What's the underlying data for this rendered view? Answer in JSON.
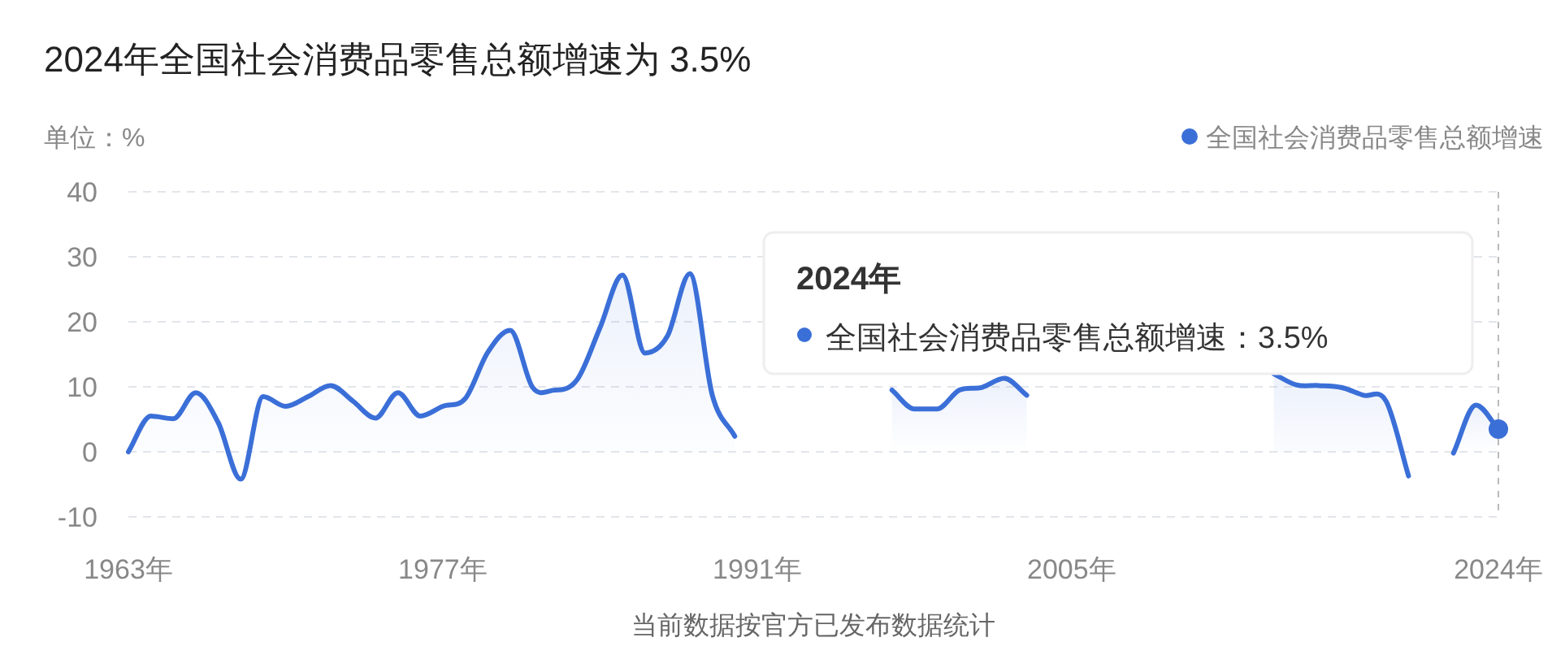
{
  "chart_data": {
    "type": "area",
    "title": "2024年全国社会消费品零售总额增速为 3.5%",
    "ylabel": "单位：%",
    "xlabel": "当前数据按官方已发布数据统计",
    "categories": [
      "1963年",
      null,
      null,
      null,
      null,
      null,
      null,
      null,
      null,
      null,
      null,
      null,
      null,
      null,
      "1977年",
      null,
      null,
      null,
      null,
      null,
      null,
      null,
      null,
      null,
      null,
      null,
      null,
      null,
      "1991年",
      null,
      null,
      null,
      null,
      null,
      null,
      null,
      null,
      null,
      null,
      null,
      null,
      null,
      "2005年",
      null,
      null,
      null,
      null,
      null,
      null,
      null,
      null,
      null,
      null,
      null,
      null,
      null,
      null,
      null,
      null,
      null,
      null,
      "2024年"
    ],
    "series": [
      {
        "name": "全国社会消费品零售总额增速",
        "color": "#3b6fd8",
        "values": [
          0,
          5.5,
          5.1,
          9.1,
          4.5,
          -4.2,
          8.5,
          7,
          8.5,
          10.2,
          7.8,
          5.2,
          9.1,
          5.5,
          7,
          8.2,
          15.3,
          18.7,
          9.9,
          9.5,
          11.2,
          19.1,
          27.2,
          15.2,
          17.8,
          27.4,
          8.7,
          2.4,
          null,
          null,
          null,
          null,
          null,
          null,
          9.5,
          6.6,
          6.6,
          9.5,
          9.9,
          11.3,
          8.7,
          null,
          null,
          null,
          null,
          null,
          null,
          null,
          null,
          null,
          null,
          12,
          10.3,
          10.2,
          9.9,
          8.7,
          7.8,
          -3.7,
          null,
          -0.2,
          7.2,
          3.5
        ]
      }
    ],
    "ylim": [
      -10,
      40
    ],
    "yticks": [
      -10,
      0,
      10,
      20,
      30,
      40
    ],
    "grid": "y",
    "legend": "top right",
    "ref_lines": [
      {
        "axis": "x",
        "value": "2024年",
        "color": "#bbbbbb",
        "line_style": "dashed"
      }
    ],
    "annotations": [
      "2024年",
      "全国社会消费品零售总额增速：3.5%"
    ]
  }
}
